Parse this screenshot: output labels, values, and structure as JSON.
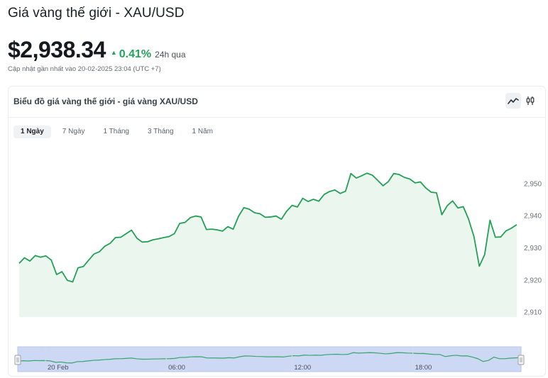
{
  "header": {
    "title": "Giá vàng thế giới - XAU/USD",
    "price": "$2,938.34",
    "change_arrow": "▲",
    "change_pct": "0.41%",
    "change_period": "24h qua",
    "updated": "Cập nhật gần nhất vào 20-02-2025 23:04 (UTC +7)"
  },
  "card": {
    "title": "Biểu đồ giá vàng thế giới - giá vàng XAU/USD",
    "chart_types": [
      "line-chart-icon",
      "candlestick-icon"
    ],
    "ranges": [
      "1 Ngày",
      "7 Ngày",
      "1 Tháng",
      "3 Tháng",
      "1 Năm"
    ],
    "active_range": 0
  },
  "colors": {
    "line": "#23a055",
    "fill": "#eaf6ee",
    "navigator_bg": "#cdd8f5",
    "navigator_line": "#3aa56a"
  },
  "chart_data": {
    "type": "area",
    "title": "",
    "xlabel": "",
    "ylabel": "",
    "ylim": [
      2908.5,
      2957
    ],
    "yticks": [
      2910,
      2920,
      2930,
      2940,
      2950
    ],
    "ytick_labels": [
      "2,910",
      "2,920",
      "2,930",
      "2,940",
      "2,950"
    ],
    "navigator_ticks": [
      {
        "label": "20 Feb",
        "frac": 0.055
      },
      {
        "label": "06:00",
        "frac": 0.295
      },
      {
        "label": "12:00",
        "frac": 0.545
      },
      {
        "label": "18:00",
        "frac": 0.785
      }
    ],
    "series": [
      {
        "values": [
          2925.2,
          2926.9,
          2925.9,
          2927.6,
          2927.1,
          2927.5,
          2926.2,
          2921.7,
          2922.6,
          2919.9,
          2919.4,
          2923.8,
          2924.2,
          2926.2,
          2928.1,
          2928.8,
          2930.5,
          2931.4,
          2933.2,
          2933.3,
          2934.4,
          2935.5,
          2933.0,
          2931.8,
          2931.9,
          2932.5,
          2932.8,
          2933.2,
          2933.5,
          2934.4,
          2937.6,
          2937.9,
          2939.4,
          2939.9,
          2939.6,
          2935.7,
          2935.8,
          2935.6,
          2935.2,
          2936.6,
          2935.8,
          2939.8,
          2942.5,
          2942.0,
          2940.9,
          2940.6,
          2939.5,
          2939.6,
          2939.9,
          2938.9,
          2941.4,
          2943.2,
          2942.7,
          2945.4,
          2944.4,
          2945.1,
          2944.5,
          2946.6,
          2947.5,
          2948.0,
          2946.9,
          2947.6,
          2953.1,
          2951.7,
          2952.4,
          2953.2,
          2952.6,
          2951.0,
          2949.3,
          2950.6,
          2953.1,
          2952.8,
          2951.9,
          2951.4,
          2950.2,
          2950.5,
          2948.6,
          2947.3,
          2947.1,
          2940.3,
          2943.1,
          2944.6,
          2942.4,
          2942.8,
          2938.9,
          2933.5,
          2924.3,
          2927.9,
          2938.6,
          2933.3,
          2933.4,
          2935.3,
          2936.1,
          2937.2
        ]
      }
    ]
  }
}
